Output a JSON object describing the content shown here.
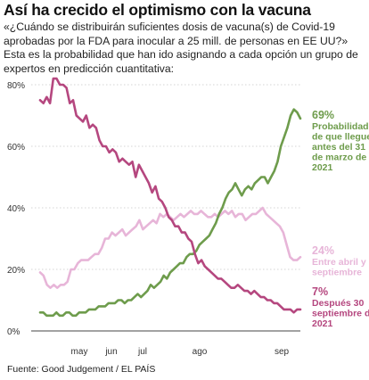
{
  "title": "Así ha crecido el optimismo con la vacuna",
  "subtitle": "«¿Cuándo se distribuirán suficientes dosis de vacuna(s) de Covid-19 aprobadas por la FDA para inocular a 25 mill. de personas en EE UU?» Esta es la probabilidad que han ido asignando a cada opción un grupo de expertos en predicción cuantitativa:",
  "source": "Fuente: Good Judgement / EL PAÍS",
  "colors": {
    "green": "#6e9c4c",
    "magenta": "#b5477f",
    "pink": "#e7b5d8"
  },
  "chart_data": {
    "type": "line",
    "ylim": [
      0,
      85
    ],
    "y_ticks": [
      0,
      20,
      40,
      60,
      80
    ],
    "y_tick_labels": [
      "0%",
      "20%",
      "40%",
      "60%",
      "80%"
    ],
    "x_ticks": [
      "may",
      "jun",
      "jul",
      "ago",
      "sep"
    ],
    "series": [
      {
        "key": "green",
        "values": [
          6,
          6,
          5,
          5,
          5,
          6,
          5,
          5,
          6,
          6,
          5,
          5,
          6,
          6,
          6,
          7,
          7,
          7,
          8,
          8,
          8,
          9,
          9,
          9,
          10,
          10,
          9,
          10,
          10,
          11,
          12,
          11,
          12,
          13,
          15,
          14,
          15,
          16,
          18,
          17,
          19,
          20,
          21,
          22,
          22,
          24,
          25,
          25,
          26,
          28,
          29,
          30,
          31,
          33,
          35,
          38,
          40,
          43,
          45,
          46,
          48,
          46,
          44,
          46,
          47,
          46,
          48,
          49,
          50,
          50,
          48,
          50,
          52,
          55,
          60,
          63,
          66,
          70,
          72,
          71,
          69
        ],
        "pct_label": "69%",
        "label_lines": [
          "Probabilidad",
          "de que llegue",
          "antes del 31",
          "de marzo de",
          "2021"
        ]
      },
      {
        "key": "pink",
        "values": [
          19,
          18,
          15,
          14,
          15,
          14,
          15,
          15,
          16,
          20,
          20,
          22,
          23,
          23,
          23,
          24,
          25,
          25,
          27,
          30,
          30,
          32,
          31,
          32,
          33,
          31,
          32,
          33,
          34,
          36,
          33,
          34,
          35,
          36,
          35,
          38,
          37,
          38,
          37,
          36,
          37,
          38,
          37,
          38,
          39,
          38,
          38,
          39,
          38,
          37,
          37,
          38,
          37,
          38,
          39,
          38,
          39,
          37,
          38,
          38,
          36,
          37,
          38,
          38,
          39,
          40,
          38,
          37,
          36,
          35,
          34,
          32,
          28,
          24,
          23,
          23,
          24
        ],
        "pct_label": "24%",
        "label_lines": [
          "Entre abril y",
          "septiembre"
        ]
      },
      {
        "key": "magenta",
        "values": [
          75,
          74,
          76,
          74,
          82,
          82,
          80,
          80,
          79,
          74,
          75,
          70,
          69,
          68,
          70,
          66,
          67,
          66,
          62,
          60,
          60,
          58,
          59,
          58,
          55,
          56,
          55,
          54,
          55,
          50,
          54,
          52,
          50,
          48,
          45,
          47,
          43,
          42,
          40,
          37,
          36,
          34,
          34,
          32,
          32,
          30,
          29,
          25,
          22,
          23,
          21,
          20,
          19,
          18,
          17,
          17,
          16,
          15,
          14,
          14,
          15,
          14,
          13,
          13,
          12,
          13,
          12,
          11,
          11,
          10,
          10,
          9,
          9,
          8,
          7,
          7,
          7,
          6,
          7,
          7
        ],
        "pct_label": "7%",
        "label_lines": [
          "Después 30",
          "septiembre de",
          "2021"
        ]
      }
    ]
  }
}
